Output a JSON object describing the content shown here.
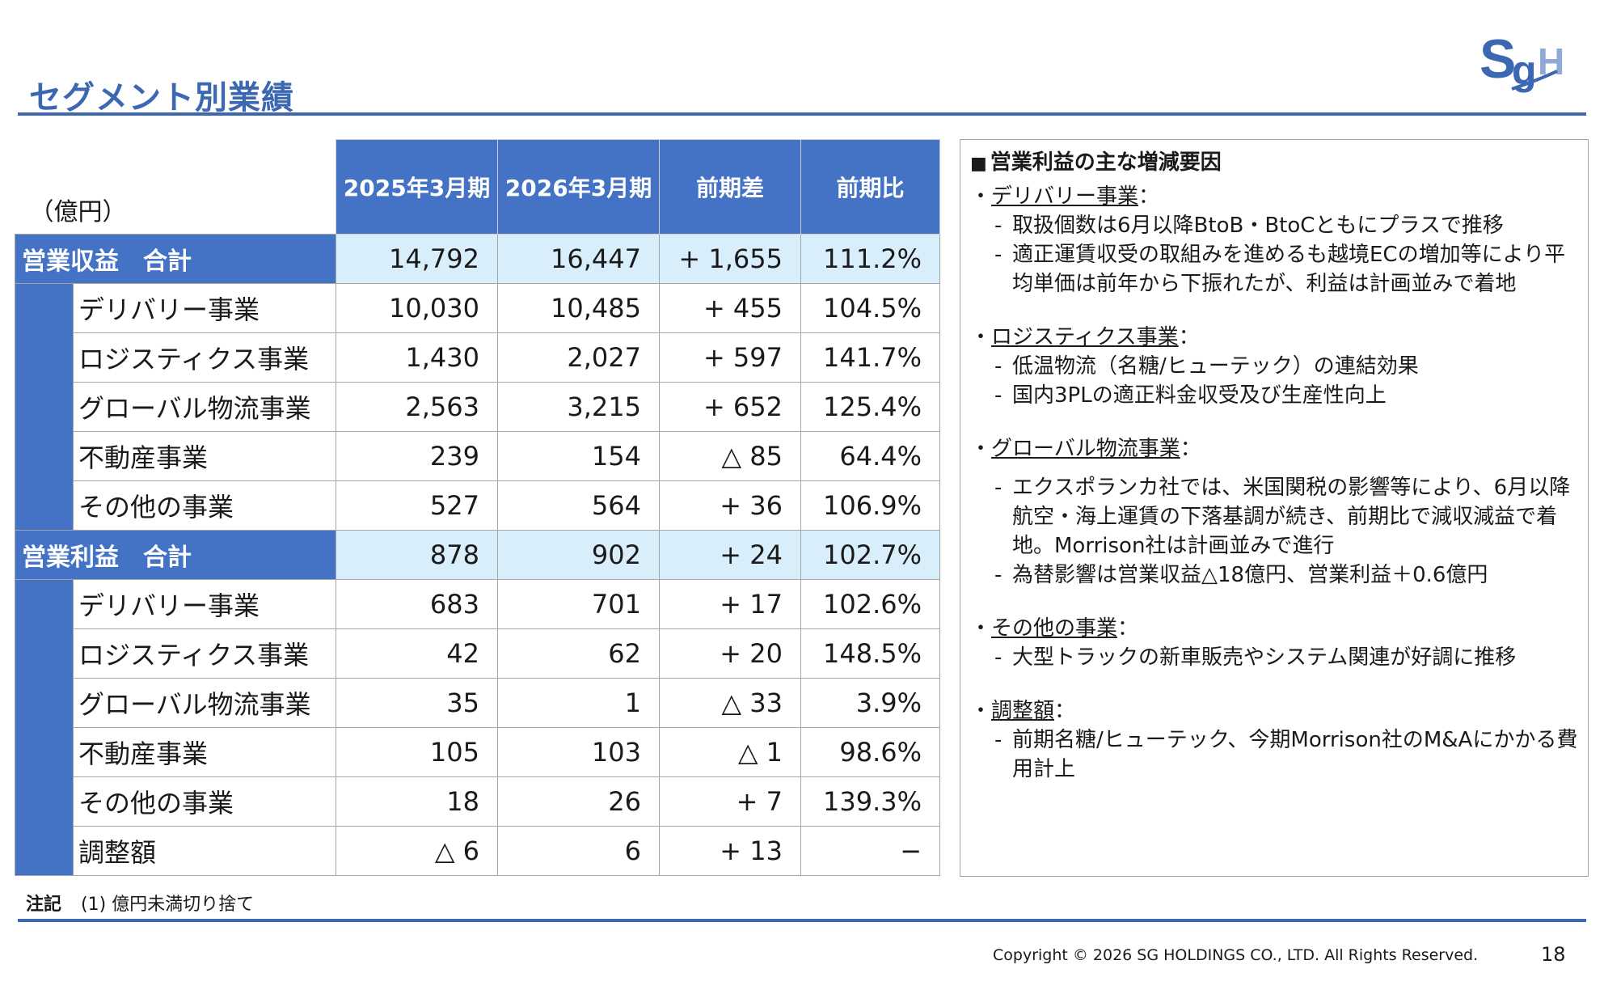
{
  "title": "セグメント別業績",
  "logo_text": "SGH",
  "table": {
    "unit": "（億円）",
    "headers": [
      "2025年3月期",
      "2026年3月期",
      "前期差",
      "前期比"
    ],
    "revenue_total": {
      "label": "営業収益　合計",
      "values": [
        "14,792",
        "16,447",
        "+ 1,655",
        "111.2%"
      ]
    },
    "revenue_rows": [
      {
        "name": "デリバリー事業",
        "values": [
          "10,030",
          "10,485",
          "+ 455",
          "104.5%"
        ]
      },
      {
        "name": "ロジスティクス事業",
        "values": [
          "1,430",
          "2,027",
          "+ 597",
          "141.7%"
        ]
      },
      {
        "name": "グローバル物流事業",
        "values": [
          "2,563",
          "3,215",
          "+ 652",
          "125.4%"
        ]
      },
      {
        "name": "不動産事業",
        "values": [
          "239",
          "154",
          "△ 85",
          "64.4%"
        ]
      },
      {
        "name": "その他の事業",
        "values": [
          "527",
          "564",
          "+ 36",
          "106.9%"
        ]
      }
    ],
    "profit_total": {
      "label": "営業利益　合計",
      "values": [
        "878",
        "902",
        "+ 24",
        "102.7%"
      ]
    },
    "profit_rows": [
      {
        "name": "デリバリー事業",
        "values": [
          "683",
          "701",
          "+ 17",
          "102.6%"
        ]
      },
      {
        "name": "ロジスティクス事業",
        "values": [
          "42",
          "62",
          "+ 20",
          "148.5%"
        ]
      },
      {
        "name": "グローバル物流事業",
        "values": [
          "35",
          "1",
          "△ 33",
          "3.9%"
        ]
      },
      {
        "name": "不動産事業",
        "values": [
          "105",
          "103",
          "△ 1",
          "98.6%"
        ]
      },
      {
        "name": "その他の事業",
        "values": [
          "18",
          "26",
          "+ 7",
          "139.3%"
        ]
      },
      {
        "name": "調整額",
        "values": [
          "△ 6",
          "6",
          "+ 13",
          "−"
        ]
      }
    ]
  },
  "panel": {
    "heading": "営業利益の主な増減要因",
    "sections": [
      {
        "title": "デリバリー事業",
        "bullets": [
          "取扱個数は6月以降BtoB・BtoCともにプラスで推移",
          "適正運賃収受の取組みを進めるも越境ECの増加等により平均単価は前年から下振れたが、利益は計画並みで着地"
        ]
      },
      {
        "title": "ロジスティクス事業",
        "bullets": [
          "低温物流（名糖/ヒューテック）の連結効果",
          "国内3PLの適正料金収受及び生産性向上"
        ]
      },
      {
        "title": "グローバル物流事業",
        "bullets": [
          "エクスポランカ社では、米国関税の影響等により、6月以降航空・海上運賃の下落基調が続き、前期比で減収減益で着地。Morrison社は計画並みで進行",
          "為替影響は営業収益△18億円、営業利益＋0.6億円"
        ]
      },
      {
        "title": "その他の事業",
        "bullets": [
          "大型トラックの新車販売やシステム関連が好調に推移"
        ]
      },
      {
        "title": "調整額",
        "bullets": [
          "前期名糖/ヒューテック、今期Morrison社のM&Aにかかる費用計上"
        ]
      }
    ]
  },
  "footnote": {
    "label": "注記",
    "text": "(1) 億円未満切り捨て"
  },
  "copyright": "Copyright © 2026 SG HOLDINGS CO., LTD.  All Rights Reserved.",
  "page_number": "18",
  "colors": {
    "accent": "#3c67b1",
    "header_fill": "#4472c4",
    "total_fill": "#d9eefb"
  }
}
